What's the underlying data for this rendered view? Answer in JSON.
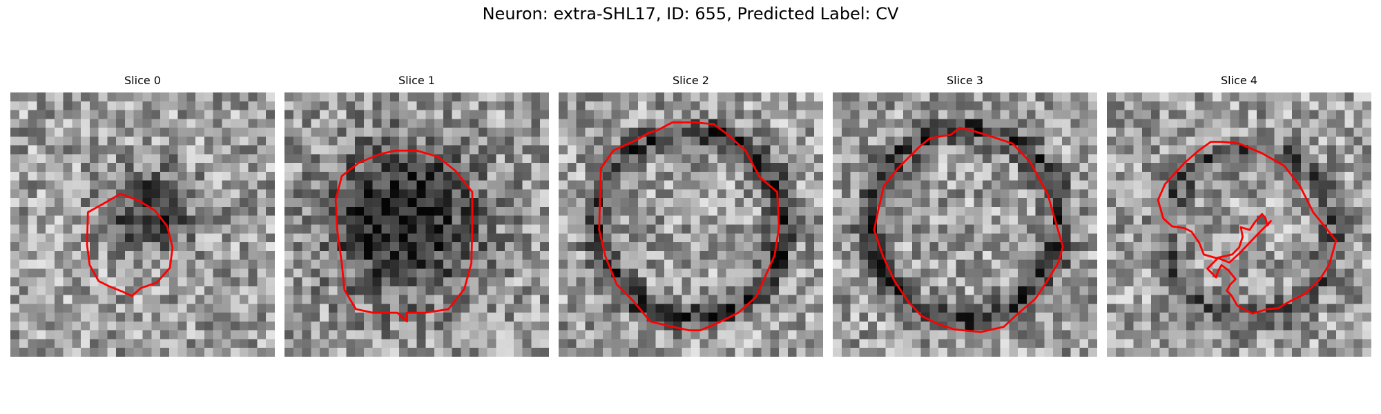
{
  "figure": {
    "title": "Neuron: extra-SHL17, ID: 655, Predicted Label: CV",
    "contour_color": "#ff0000",
    "colormap": "grayscale"
  },
  "panels": [
    {
      "title": "Slice 0"
    },
    {
      "title": "Slice 1"
    },
    {
      "title": "Slice 2"
    },
    {
      "title": "Slice 3"
    },
    {
      "title": "Slice 4"
    }
  ]
}
